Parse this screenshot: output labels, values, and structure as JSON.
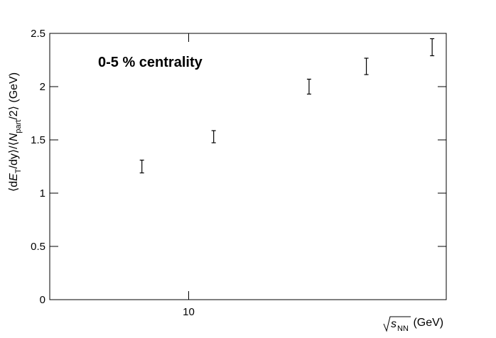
{
  "chart_data": {
    "type": "errorbar",
    "annotation": "0-5 % centrality",
    "xlabel": [
      "s",
      "NN",
      " (GeV)"
    ],
    "ylabel": [
      "⟨d",
      "E",
      "T",
      "/dy⟩/⟨",
      "N",
      "part",
      "/2⟩ (GeV)"
    ],
    "x": [
      7.7,
      11.5,
      19.6,
      27,
      39
    ],
    "series": [
      {
        "color": "#000000",
        "values": [
          1.25,
          1.53,
          2.0,
          2.19,
          2.37
        ],
        "errors": [
          0.06,
          0.057,
          0.07,
          0.077,
          0.08
        ]
      }
    ],
    "xscale": "log",
    "xlim": [
      4.6,
      42.2
    ],
    "xticks": [
      10
    ],
    "ylim": [
      0,
      2.5
    ],
    "yticks": [
      0,
      0.5,
      1,
      1.5,
      2,
      2.5
    ]
  }
}
